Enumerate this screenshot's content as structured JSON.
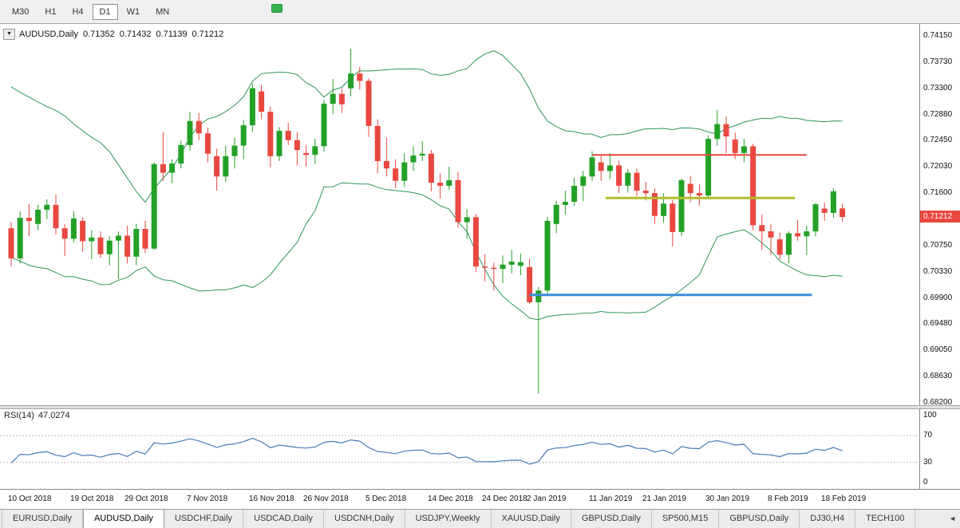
{
  "toolbar": {
    "timeframes": [
      {
        "label": "M30",
        "active": false
      },
      {
        "label": "H1",
        "active": false
      },
      {
        "label": "H4",
        "active": false
      },
      {
        "label": "D1",
        "active": true
      },
      {
        "label": "W1",
        "active": false
      },
      {
        "label": "MN",
        "active": false
      }
    ]
  },
  "chart": {
    "title": {
      "symbol": "AUDUSD,Daily",
      "open": "0.71352",
      "high": "0.71432",
      "low": "0.71139",
      "close": "0.71212"
    },
    "menu_glyph": "▼",
    "price_badge": "0.71212",
    "price_axis_labels": [
      "0.74150",
      "0.73730",
      "0.73300",
      "0.72880",
      "0.72450",
      "0.72030",
      "0.71600",
      "0.71180",
      "0.70750",
      "0.70330",
      "0.69900",
      "0.69480",
      "0.69050",
      "0.68630",
      "0.68200"
    ],
    "colors": {
      "bull": "#23a127",
      "bear": "#e8483f",
      "band": "#2c9658",
      "badge_bg": "#e8483f",
      "rsi_line": "#4a7bb7",
      "level_dash": "#bdbdbd"
    }
  },
  "chart_data": {
    "type": "candlestick",
    "symbol": "AUDUSD",
    "timeframe": "Daily",
    "ylim": [
      0.682,
      0.7415
    ],
    "price_tick_step": 0.00425,
    "tick_indices": [
      0,
      7,
      13,
      20,
      27,
      33,
      40,
      47,
      53,
      58,
      65,
      71,
      78,
      85,
      91
    ],
    "tick_labels": [
      "10 Oct 2018",
      "19 Oct 2018",
      "29 Oct 2018",
      "7 Nov 2018",
      "16 Nov 2018",
      "26 Nov 2018",
      "5 Dec 2018",
      "14 Dec 2018",
      "24 Dec 2018",
      "2 Jan 2019",
      "11 Jan 2019",
      "21 Jan 2019",
      "30 Jan 2019",
      "8 Feb 2019",
      "18 Feb 2019"
    ],
    "dates": [
      "2018-10-10",
      "2018-10-11",
      "2018-10-12",
      "2018-10-15",
      "2018-10-16",
      "2018-10-17",
      "2018-10-18",
      "2018-10-19",
      "2018-10-22",
      "2018-10-23",
      "2018-10-24",
      "2018-10-25",
      "2018-10-26",
      "2018-10-29",
      "2018-10-30",
      "2018-10-31",
      "2018-11-01",
      "2018-11-02",
      "2018-11-05",
      "2018-11-06",
      "2018-11-07",
      "2018-11-08",
      "2018-11-09",
      "2018-11-12",
      "2018-11-13",
      "2018-11-14",
      "2018-11-15",
      "2018-11-16",
      "2018-11-19",
      "2018-11-20",
      "2018-11-21",
      "2018-11-22",
      "2018-11-23",
      "2018-11-26",
      "2018-11-27",
      "2018-11-28",
      "2018-11-29",
      "2018-11-30",
      "2018-12-03",
      "2018-12-04",
      "2018-12-05",
      "2018-12-06",
      "2018-12-07",
      "2018-12-10",
      "2018-12-11",
      "2018-12-12",
      "2018-12-13",
      "2018-12-14",
      "2018-12-17",
      "2018-12-18",
      "2018-12-19",
      "2018-12-20",
      "2018-12-21",
      "2018-12-24",
      "2018-12-26",
      "2018-12-27",
      "2018-12-28",
      "2018-12-31",
      "2019-01-02",
      "2019-01-03",
      "2019-01-04",
      "2019-01-07",
      "2019-01-08",
      "2019-01-09",
      "2019-01-10",
      "2019-01-11",
      "2019-01-14",
      "2019-01-15",
      "2019-01-16",
      "2019-01-17",
      "2019-01-18",
      "2019-01-21",
      "2019-01-22",
      "2019-01-23",
      "2019-01-24",
      "2019-01-25",
      "2019-01-28",
      "2019-01-29",
      "2019-01-30",
      "2019-01-31",
      "2019-02-01",
      "2019-02-04",
      "2019-02-05",
      "2019-02-06",
      "2019-02-07",
      "2019-02-08",
      "2019-02-11",
      "2019-02-12",
      "2019-02-13",
      "2019-02-14",
      "2019-02-15",
      "2019-02-18",
      "2019-02-19",
      "2019-02-20"
    ],
    "ohlc": [
      [
        0.7103,
        0.7113,
        0.7041,
        0.7054
      ],
      [
        0.7054,
        0.713,
        0.7046,
        0.712
      ],
      [
        0.712,
        0.7142,
        0.709,
        0.7115
      ],
      [
        0.711,
        0.7141,
        0.71,
        0.7133
      ],
      [
        0.7133,
        0.715,
        0.7118,
        0.7141
      ],
      [
        0.7141,
        0.7158,
        0.7093,
        0.7103
      ],
      [
        0.7103,
        0.711,
        0.7058,
        0.7086
      ],
      [
        0.7086,
        0.7131,
        0.708,
        0.7119
      ],
      [
        0.7115,
        0.7121,
        0.7065,
        0.7082
      ],
      [
        0.7082,
        0.71,
        0.7053,
        0.7088
      ],
      [
        0.7088,
        0.7098,
        0.7055,
        0.7061
      ],
      [
        0.7061,
        0.709,
        0.7043,
        0.7083
      ],
      [
        0.7083,
        0.7098,
        0.7021,
        0.7091
      ],
      [
        0.7091,
        0.7107,
        0.7046,
        0.7057
      ],
      [
        0.7057,
        0.711,
        0.7043,
        0.7102
      ],
      [
        0.7102,
        0.7115,
        0.7063,
        0.707
      ],
      [
        0.707,
        0.721,
        0.7068,
        0.7207
      ],
      [
        0.7207,
        0.7259,
        0.718,
        0.7193
      ],
      [
        0.7193,
        0.7215,
        0.7176,
        0.7208
      ],
      [
        0.7208,
        0.7245,
        0.72,
        0.7238
      ],
      [
        0.7238,
        0.7292,
        0.7229,
        0.7277
      ],
      [
        0.7277,
        0.729,
        0.7246,
        0.7257
      ],
      [
        0.7257,
        0.7266,
        0.721,
        0.7224
      ],
      [
        0.722,
        0.7232,
        0.7164,
        0.7187
      ],
      [
        0.7187,
        0.7237,
        0.7178,
        0.722
      ],
      [
        0.722,
        0.725,
        0.72,
        0.7237
      ],
      [
        0.7237,
        0.7279,
        0.7215,
        0.727
      ],
      [
        0.727,
        0.7338,
        0.7259,
        0.733
      ],
      [
        0.7325,
        0.7336,
        0.728,
        0.7292
      ],
      [
        0.7292,
        0.73,
        0.7202,
        0.722
      ],
      [
        0.722,
        0.7267,
        0.7212,
        0.7261
      ],
      [
        0.7261,
        0.7274,
        0.7238,
        0.7246
      ],
      [
        0.7246,
        0.7259,
        0.7205,
        0.723
      ],
      [
        0.7225,
        0.7238,
        0.7203,
        0.7222
      ],
      [
        0.7222,
        0.7248,
        0.7207,
        0.7236
      ],
      [
        0.7236,
        0.7311,
        0.7227,
        0.7305
      ],
      [
        0.7305,
        0.7345,
        0.7288,
        0.7321
      ],
      [
        0.7321,
        0.733,
        0.729,
        0.7304
      ],
      [
        0.733,
        0.7394,
        0.7317,
        0.7354
      ],
      [
        0.7354,
        0.7365,
        0.7328,
        0.7342
      ],
      [
        0.7342,
        0.7346,
        0.7251,
        0.7269
      ],
      [
        0.7269,
        0.728,
        0.7192,
        0.7212
      ],
      [
        0.7212,
        0.725,
        0.7187,
        0.72
      ],
      [
        0.72,
        0.7215,
        0.7168,
        0.718
      ],
      [
        0.718,
        0.7225,
        0.717,
        0.721
      ],
      [
        0.721,
        0.7236,
        0.7196,
        0.7221
      ],
      [
        0.7221,
        0.7244,
        0.7212,
        0.7224
      ],
      [
        0.7224,
        0.723,
        0.7163,
        0.7177
      ],
      [
        0.7177,
        0.7192,
        0.7151,
        0.7172
      ],
      [
        0.7172,
        0.7203,
        0.7165,
        0.7181
      ],
      [
        0.7181,
        0.7194,
        0.7104,
        0.7113
      ],
      [
        0.7113,
        0.7134,
        0.7086,
        0.7121
      ],
      [
        0.7121,
        0.7126,
        0.7032,
        0.7041
      ],
      [
        0.7041,
        0.7061,
        0.7017,
        0.7039
      ],
      [
        0.7039,
        0.7047,
        0.7002,
        0.7037
      ],
      [
        0.7037,
        0.7059,
        0.7014,
        0.7044
      ],
      [
        0.7044,
        0.7068,
        0.703,
        0.7049
      ],
      [
        0.7042,
        0.7062,
        0.7027,
        0.7048
      ],
      [
        0.704,
        0.7054,
        0.698,
        0.6983
      ],
      [
        0.6983,
        0.7008,
        0.6835,
        0.7002
      ],
      [
        0.7002,
        0.7122,
        0.6993,
        0.7115
      ],
      [
        0.711,
        0.7148,
        0.7095,
        0.7141
      ],
      [
        0.7141,
        0.7164,
        0.7125,
        0.7146
      ],
      [
        0.7146,
        0.7185,
        0.7139,
        0.7172
      ],
      [
        0.7172,
        0.7196,
        0.7147,
        0.7187
      ],
      [
        0.7187,
        0.7228,
        0.718,
        0.7218
      ],
      [
        0.721,
        0.7222,
        0.718,
        0.7196
      ],
      [
        0.7196,
        0.7225,
        0.7183,
        0.7205
      ],
      [
        0.7205,
        0.7213,
        0.716,
        0.7172
      ],
      [
        0.7172,
        0.7199,
        0.7161,
        0.7193
      ],
      [
        0.7193,
        0.72,
        0.7155,
        0.7164
      ],
      [
        0.7164,
        0.7178,
        0.7148,
        0.716
      ],
      [
        0.716,
        0.7168,
        0.711,
        0.7123
      ],
      [
        0.7123,
        0.716,
        0.7112,
        0.7143
      ],
      [
        0.7143,
        0.7149,
        0.7073,
        0.7097
      ],
      [
        0.7097,
        0.7184,
        0.709,
        0.7181
      ],
      [
        0.7175,
        0.7188,
        0.7145,
        0.716
      ],
      [
        0.716,
        0.7174,
        0.714,
        0.7156
      ],
      [
        0.7156,
        0.7254,
        0.715,
        0.7248
      ],
      [
        0.7248,
        0.7295,
        0.7237,
        0.7272
      ],
      [
        0.7272,
        0.7284,
        0.7225,
        0.7252
      ],
      [
        0.7247,
        0.7258,
        0.7215,
        0.7225
      ],
      [
        0.7225,
        0.7248,
        0.721,
        0.7236
      ],
      [
        0.7236,
        0.724,
        0.71,
        0.7108
      ],
      [
        0.7108,
        0.7125,
        0.7068,
        0.7098
      ],
      [
        0.7098,
        0.711,
        0.706,
        0.7088
      ],
      [
        0.7085,
        0.7096,
        0.7052,
        0.706
      ],
      [
        0.706,
        0.7098,
        0.7046,
        0.7095
      ],
      [
        0.7095,
        0.7117,
        0.7083,
        0.709
      ],
      [
        0.709,
        0.7107,
        0.706,
        0.7098
      ],
      [
        0.7098,
        0.7144,
        0.709,
        0.7142
      ],
      [
        0.7135,
        0.7145,
        0.7115,
        0.7128
      ],
      [
        0.7128,
        0.7168,
        0.712,
        0.7163
      ],
      [
        0.71352,
        0.71432,
        0.71139,
        0.71212
      ]
    ],
    "warmup_closes": [
      0.729,
      0.7272,
      0.7258,
      0.7246,
      0.7238,
      0.723,
      0.724,
      0.7248,
      0.7235,
      0.7222,
      0.721,
      0.7222,
      0.7238,
      0.7226,
      0.721,
      0.7182,
      0.713,
      0.7092,
      0.7055,
      0.7075
    ],
    "indicators": {
      "bollinger": {
        "period": 20,
        "deviation": 2
      },
      "rsi": {
        "period": 14,
        "label": "RSI(14)",
        "current": "47.0274",
        "levels": [
          70,
          30
        ],
        "axis_labels": [
          "100",
          "70",
          "30",
          "0"
        ],
        "range": [
          0,
          100
        ]
      }
    },
    "objects": {
      "hlines": [
        {
          "name": "resistance-line-red",
          "color": "#e8483f",
          "price": 0.7222,
          "x1_bar": 65,
          "x2_bar": 89,
          "width": 2
        },
        {
          "name": "support-line-yellow",
          "color": "#b3bd2d",
          "price": 0.7152,
          "x1_bar": 66.5,
          "x2_bar": 87.7,
          "width": 3
        },
        {
          "name": "support-line-blue",
          "color": "#3c8dde",
          "price": 0.6995,
          "x1_bar": 58,
          "x2_bar": 89.6,
          "width": 3
        }
      ]
    }
  },
  "tabbar": {
    "tabs": [
      {
        "label": "EURUSD,Daily",
        "active": false
      },
      {
        "label": "AUDUSD,Daily",
        "active": true
      },
      {
        "label": "USDCHF,Daily",
        "active": false
      },
      {
        "label": "USDCAD,Daily",
        "active": false
      },
      {
        "label": "USDCNH,Daily",
        "active": false
      },
      {
        "label": "USDJPY,Weekly",
        "active": false
      },
      {
        "label": "XAUUSD,Daily",
        "active": false
      },
      {
        "label": "GBPUSD,Daily",
        "active": false
      },
      {
        "label": "SP500,M15",
        "active": false
      },
      {
        "label": "GBPUSD,Daily",
        "active": false
      },
      {
        "label": "DJ30,H4",
        "active": false
      },
      {
        "label": "TECH100",
        "active": false
      }
    ],
    "scroll_glyph": "◄"
  }
}
